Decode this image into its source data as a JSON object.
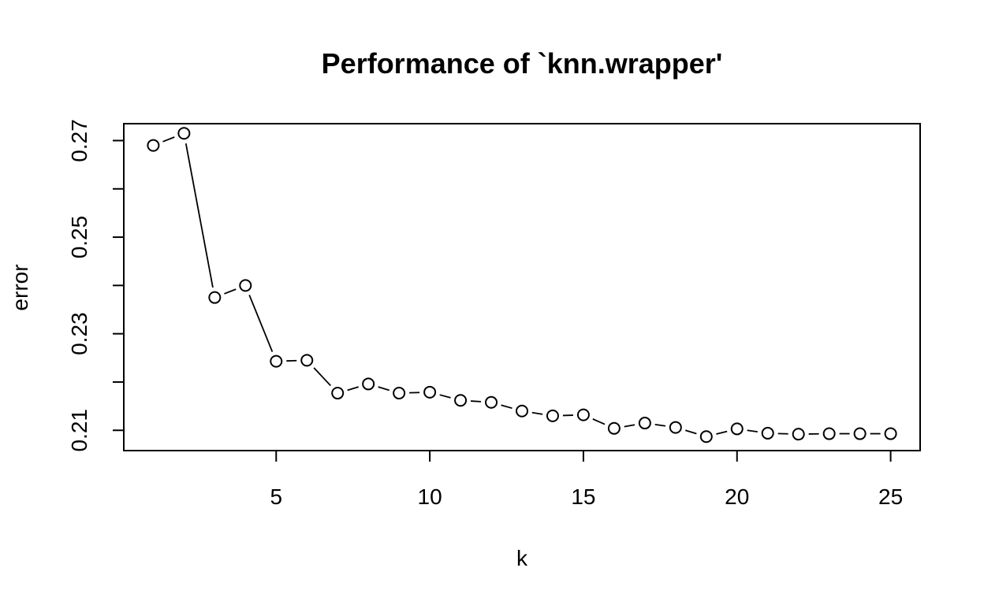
{
  "chart_data": {
    "type": "line",
    "title": "Performance of `knn.wrapper'",
    "xlabel": "k",
    "ylabel": "error",
    "x": [
      1,
      2,
      3,
      4,
      5,
      6,
      7,
      8,
      9,
      10,
      11,
      12,
      13,
      14,
      15,
      16,
      17,
      18,
      19,
      20,
      21,
      22,
      23,
      24,
      25
    ],
    "y": [
      0.269,
      0.2715,
      0.2375,
      0.24,
      0.2243,
      0.2245,
      0.2177,
      0.2196,
      0.2177,
      0.2179,
      0.2162,
      0.2158,
      0.214,
      0.213,
      0.2132,
      0.2104,
      0.2115,
      0.2106,
      0.2087,
      0.2103,
      0.2094,
      0.2092,
      0.2093,
      0.2093,
      0.2093
    ],
    "xlim": [
      0.04,
      25.96
    ],
    "ylim": [
      0.2058,
      0.2735
    ],
    "x_ticks": [
      5,
      10,
      15,
      20,
      25
    ],
    "x_tick_labels": [
      "5",
      "10",
      "15",
      "20",
      "25"
    ],
    "y_ticks": [
      0.21,
      0.22,
      0.23,
      0.24,
      0.25,
      0.26,
      0.27
    ],
    "y_tick_labels": [
      "0.21",
      "",
      "0.23",
      "",
      "0.25",
      "",
      "0.27"
    ],
    "style": "points connected by lines (type b)",
    "grid": false,
    "legend": "none"
  }
}
